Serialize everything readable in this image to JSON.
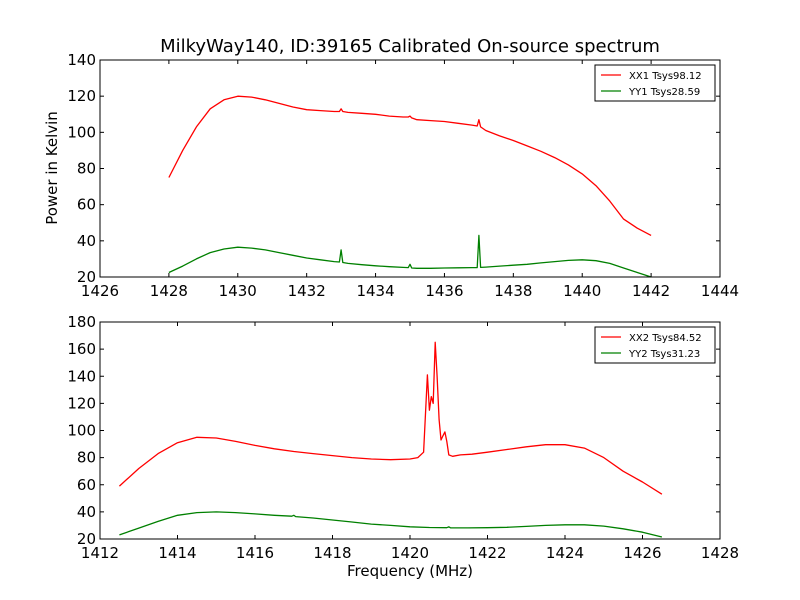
{
  "figure": {
    "title": "MilkyWay140, ID:39165 Calibrated On-source spectrum",
    "ylabel": "Power in Kelvin",
    "xlabel": "Frequency (MHz)"
  },
  "chart_data": [
    {
      "type": "line",
      "title": "MilkyWay140, ID:39165 Calibrated On-source spectrum",
      "xlabel": "",
      "ylabel": "Power in Kelvin",
      "xlim": [
        1426,
        1444
      ],
      "ylim": [
        20,
        140
      ],
      "xticks": [
        1426,
        1428,
        1430,
        1432,
        1434,
        1436,
        1438,
        1440,
        1442,
        1444
      ],
      "yticks": [
        20,
        40,
        60,
        80,
        100,
        120,
        140
      ],
      "grid": false,
      "legend_position": "top-right",
      "series": [
        {
          "name": "XX1 Tsys98.12",
          "color": "#ff0000",
          "x": [
            1428,
            1428.4,
            1428.8,
            1429.2,
            1429.6,
            1430,
            1430.4,
            1430.8,
            1431.2,
            1431.6,
            1432,
            1432.4,
            1432.8,
            1432.95,
            1433,
            1433.05,
            1433.2,
            1433.6,
            1434,
            1434.4,
            1434.8,
            1434.95,
            1435,
            1435.05,
            1435.2,
            1435.6,
            1436,
            1436.4,
            1436.8,
            1436.95,
            1437,
            1437.05,
            1437.2,
            1437.6,
            1438,
            1438.4,
            1438.8,
            1439.2,
            1439.6,
            1440,
            1440.4,
            1440.8,
            1441.2,
            1441.6,
            1442
          ],
          "y": [
            75,
            90,
            103,
            113,
            118,
            120,
            119.5,
            118,
            116,
            114,
            112.5,
            112,
            111.5,
            111.5,
            113,
            111.5,
            111,
            110.5,
            110,
            109,
            108.5,
            108.5,
            109,
            108,
            107,
            106.5,
            106,
            105,
            104,
            103.5,
            107,
            103,
            101,
            98,
            95.5,
            92.5,
            89.5,
            86,
            82,
            77,
            70.5,
            62,
            52,
            47,
            43
          ]
        },
        {
          "name": "YY1 Tsys28.59",
          "color": "#008000",
          "x": [
            1428,
            1428.4,
            1428.8,
            1429.2,
            1429.6,
            1430,
            1430.4,
            1430.8,
            1431.2,
            1431.6,
            1432,
            1432.4,
            1432.8,
            1432.95,
            1433,
            1433.05,
            1433.2,
            1433.6,
            1434,
            1434.4,
            1434.8,
            1434.95,
            1435,
            1435.05,
            1435.2,
            1435.6,
            1436,
            1436.4,
            1436.8,
            1436.95,
            1437,
            1437.05,
            1437.2,
            1437.6,
            1438,
            1438.4,
            1438.8,
            1439.2,
            1439.6,
            1440,
            1440.4,
            1440.8,
            1441.2,
            1441.6,
            1442
          ],
          "y": [
            22.5,
            26,
            30,
            33.5,
            35.5,
            36.5,
            36,
            35,
            33.5,
            32,
            30.5,
            29.5,
            28.5,
            28.3,
            35,
            28,
            27.5,
            26.8,
            26.2,
            25.7,
            25.3,
            25.2,
            27,
            25,
            24.8,
            24.8,
            25,
            25.1,
            25.2,
            25.2,
            43,
            25.3,
            25.5,
            26,
            26.5,
            27,
            27.8,
            28.5,
            29.2,
            29.5,
            29,
            27.5,
            25,
            22.5,
            20
          ]
        }
      ]
    },
    {
      "type": "line",
      "title": "",
      "xlabel": "Frequency (MHz)",
      "ylabel": "",
      "xlim": [
        1412,
        1428
      ],
      "ylim": [
        20,
        180
      ],
      "xticks": [
        1412,
        1414,
        1416,
        1418,
        1420,
        1422,
        1424,
        1426,
        1428
      ],
      "yticks": [
        20,
        40,
        60,
        80,
        100,
        120,
        140,
        160,
        180
      ],
      "grid": false,
      "legend_position": "top-right",
      "series": [
        {
          "name": "XX2 Tsys84.52",
          "color": "#ff0000",
          "x": [
            1412.5,
            1413,
            1413.5,
            1414,
            1414.5,
            1415,
            1415.5,
            1416,
            1416.5,
            1417,
            1417.5,
            1418,
            1418.5,
            1419,
            1419.5,
            1420,
            1420.2,
            1420.35,
            1420.45,
            1420.5,
            1420.55,
            1420.6,
            1420.65,
            1420.7,
            1420.75,
            1420.8,
            1420.85,
            1420.9,
            1420.95,
            1421,
            1421.1,
            1421.3,
            1421.6,
            1422,
            1422.5,
            1423,
            1423.5,
            1424,
            1424.5,
            1425,
            1425.5,
            1426,
            1426.5
          ],
          "y": [
            59,
            72,
            83,
            91,
            95,
            94.5,
            92,
            89,
            86.5,
            84.5,
            83,
            81.5,
            80,
            79,
            78.5,
            79,
            80,
            84,
            141,
            115,
            125,
            120,
            165,
            140,
            108,
            93,
            96,
            99,
            92,
            82,
            81,
            82,
            82.5,
            84,
            86,
            88,
            89.5,
            89.5,
            87,
            80,
            70,
            62,
            53
          ]
        },
        {
          "name": "YY2 Tsys31.23",
          "color": "#008000",
          "x": [
            1412.5,
            1413,
            1413.5,
            1414,
            1414.5,
            1415,
            1415.5,
            1416,
            1416.5,
            1416.95,
            1417,
            1417.05,
            1417.5,
            1418,
            1418.5,
            1419,
            1419.5,
            1420,
            1420.5,
            1420.95,
            1421,
            1421.05,
            1421.5,
            1422,
            1422.5,
            1423,
            1423.5,
            1424,
            1424.5,
            1425,
            1425.5,
            1426,
            1426.5
          ],
          "y": [
            23,
            28,
            33,
            37.5,
            39.5,
            40,
            39.5,
            38.5,
            37.5,
            36.8,
            37.5,
            36.5,
            35.5,
            34,
            32.5,
            31,
            30,
            29,
            28.5,
            28.3,
            29,
            28.2,
            28.2,
            28.3,
            28.6,
            29.3,
            30,
            30.5,
            30.5,
            29.5,
            27.5,
            25,
            21.5
          ]
        }
      ]
    }
  ]
}
